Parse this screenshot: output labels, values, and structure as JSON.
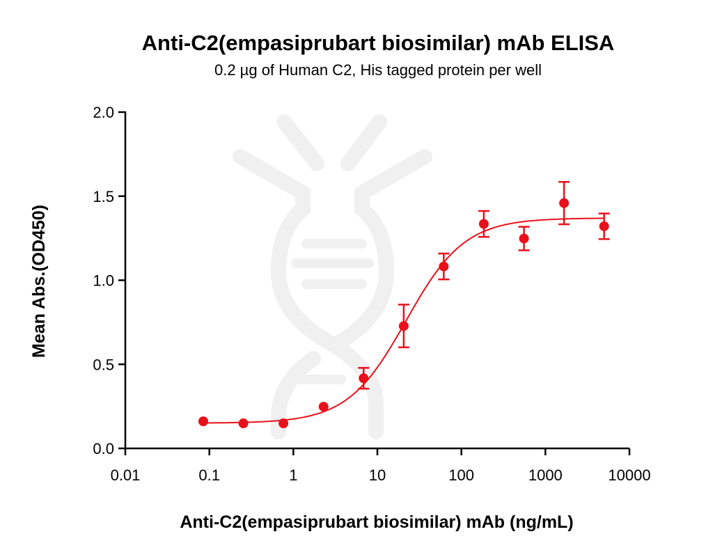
{
  "chart_data": {
    "type": "scatter",
    "title": "Anti-C2(empasiprubart biosimilar) mAb ELISA",
    "subtitle": "0.2 µg of Human C2, His tagged protein per well",
    "xlabel": "Anti-C2(empasiprubart biosimilar) mAb (ng/mL)",
    "ylabel": "Mean Abs.(OD450)",
    "xscale": "log",
    "xlim": [
      0.01,
      10000
    ],
    "ylim": [
      0,
      2.0
    ],
    "xticks": [
      "0.01",
      "0.1",
      "1",
      "10",
      "100",
      "1000",
      "10000"
    ],
    "yticks": [
      "0.0",
      "0.5",
      "1.0",
      "1.5",
      "2.0"
    ],
    "grid": false,
    "color": "#e8101a",
    "series": [
      {
        "x": [
          0.0847,
          0.254,
          0.762,
          2.29,
          6.86,
          20.6,
          61.7,
          185,
          556,
          1667,
          5000
        ],
        "y": [
          0.161,
          0.149,
          0.149,
          0.248,
          0.417,
          0.728,
          1.082,
          1.335,
          1.248,
          1.459,
          1.321
        ],
        "error": [
          0,
          0,
          0,
          0,
          0.062,
          0.127,
          0.077,
          0.077,
          0.07,
          0.126,
          0.076
        ]
      }
    ],
    "fit": {
      "model": "4PL",
      "bottom": 0.15,
      "top": 1.37,
      "ec50": 22,
      "hill": 1.25
    }
  }
}
